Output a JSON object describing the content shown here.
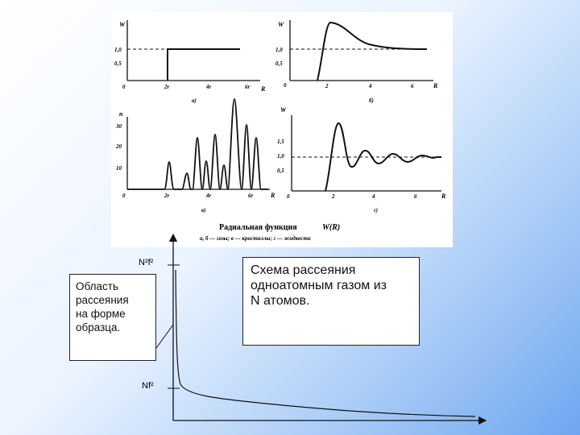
{
  "figure": {
    "caption_title": "Радиальная функция",
    "caption_symbol": "W(R)",
    "caption_legend": "а, б — газы; в — кристаллы; г — жидкости",
    "panels": [
      {
        "id": "a",
        "panel_label": "а)",
        "y_label": "W",
        "x_label": "R",
        "y_ticks": [
          "1,0",
          "0,5",
          "0"
        ],
        "x_ticks": [
          "2r",
          "4r",
          "6r"
        ]
      },
      {
        "id": "b",
        "panel_label": "б)",
        "y_label": "W",
        "x_label": "R",
        "y_ticks": [
          "1,0",
          "0,5",
          "0"
        ],
        "x_ticks": [
          "2",
          "4",
          "6"
        ]
      },
      {
        "id": "v",
        "panel_label": "в)",
        "y_label": "n",
        "x_label": "R",
        "y_ticks": [
          "30",
          "20",
          "10",
          "0"
        ],
        "x_ticks": [
          "2r",
          "4r",
          "6r"
        ]
      },
      {
        "id": "g",
        "panel_label": "г)",
        "y_label": "W",
        "x_label": "R",
        "y_ticks": [
          "1,5",
          "1,0",
          "0,5",
          "0"
        ],
        "x_ticks": [
          "2",
          "4",
          "6"
        ]
      }
    ]
  },
  "scatter_plot": {
    "label_top": "N²f²",
    "label_bottom": "Nf²"
  },
  "callouts": {
    "region_lines": [
      "Область",
      "рассеяния",
      "на форме",
      "образца."
    ],
    "scheme_lines": [
      "Схема рассеяния",
      "одноатомным газом из",
      "N атомов."
    ]
  },
  "colors": {
    "background_gradient_end": "#6fa6f0",
    "ink": "#111111"
  }
}
